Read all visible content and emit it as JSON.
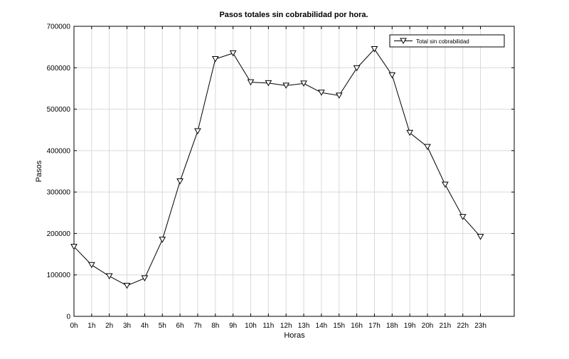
{
  "chart_data": {
    "type": "line",
    "title": "Pasos totales sin cobrabilidad por hora.",
    "xlabel": "Horas",
    "ylabel": "Pasos",
    "categories": [
      "0h",
      "1h",
      "2h",
      "3h",
      "4h",
      "5h",
      "6h",
      "7h",
      "8h",
      "9h",
      "10h",
      "11h",
      "12h",
      "13h",
      "14h",
      "15h",
      "16h",
      "17h",
      "18h",
      "19h",
      "20h",
      "21h",
      "22h",
      "23h"
    ],
    "series": [
      {
        "name": "Total sin cobrabilidad",
        "marker": "triangle-down",
        "color": "#000000",
        "values": [
          168000,
          124000,
          97000,
          74000,
          92000,
          185000,
          326000,
          447000,
          621000,
          635000,
          565000,
          563000,
          557000,
          562000,
          540000,
          533000,
          599000,
          645000,
          582000,
          443000,
          409000,
          318000,
          240000,
          192000
        ]
      }
    ],
    "ylim": [
      0,
      700000
    ],
    "yticks": [
      "0",
      "100000",
      "200000",
      "300000",
      "400000",
      "500000",
      "600000",
      "700000"
    ],
    "grid": true,
    "legend_position": "top-right"
  }
}
